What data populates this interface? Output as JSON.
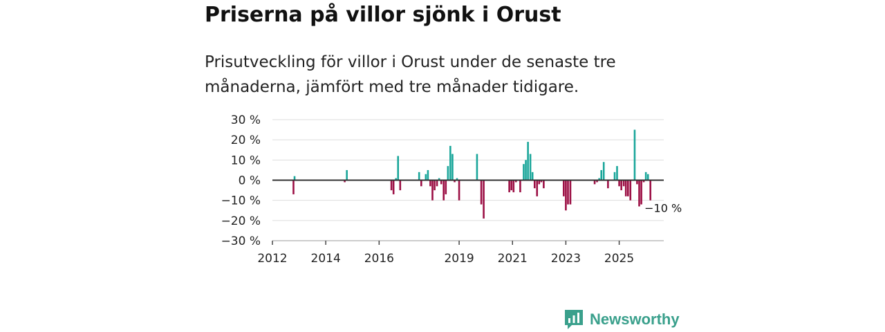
{
  "title": "Priserna på villor sjönk i Orust",
  "subtitle": "Prisutveckling för villor i Orust under de senaste tre månaderna, jämfört med tre månader tidigare.",
  "brand": {
    "name": "Newsworthy"
  },
  "colors": {
    "positive": "#1aa69a",
    "negative": "#9c1045",
    "zero_line": "#333333",
    "grid": "#dddddd",
    "brand": "#3aa08c"
  },
  "chart_data": {
    "type": "bar",
    "title": "Priserna på villor sjönk i Orust",
    "xlabel": "",
    "ylabel": "",
    "ylim": [
      -30,
      30
    ],
    "y_ticks": [
      30,
      20,
      10,
      0,
      -10,
      -20,
      -30
    ],
    "y_tick_labels": [
      "30 %",
      "20 %",
      "10 %",
      "0 %",
      "−10 %",
      "−20 %",
      "−30 %"
    ],
    "x_ticks": [
      2012,
      2014,
      2016,
      2019,
      2021,
      2023,
      2025
    ],
    "x_tick_labels": [
      "2012",
      "2014",
      "2016",
      "2019",
      "2021",
      "2023",
      "2025"
    ],
    "x_range": [
      2012.0,
      2026.67
    ],
    "annotation": {
      "text": "−10 %",
      "x": 2026.0,
      "y": -10
    },
    "series": [
      {
        "name": "Prisutveckling",
        "points": [
          {
            "x": 2012.79,
            "y": -7
          },
          {
            "x": 2012.83,
            "y": 2
          },
          {
            "x": 2014.71,
            "y": -1
          },
          {
            "x": 2014.79,
            "y": 5
          },
          {
            "x": 2016.46,
            "y": -5
          },
          {
            "x": 2016.54,
            "y": -7
          },
          {
            "x": 2016.63,
            "y": 1
          },
          {
            "x": 2016.71,
            "y": 12
          },
          {
            "x": 2016.79,
            "y": -5
          },
          {
            "x": 2017.5,
            "y": 4
          },
          {
            "x": 2017.58,
            "y": -3
          },
          {
            "x": 2017.75,
            "y": 3
          },
          {
            "x": 2017.83,
            "y": 5
          },
          {
            "x": 2017.92,
            "y": -3
          },
          {
            "x": 2018.0,
            "y": -10
          },
          {
            "x": 2018.08,
            "y": -5
          },
          {
            "x": 2018.17,
            "y": -3
          },
          {
            "x": 2018.25,
            "y": 1
          },
          {
            "x": 2018.33,
            "y": -2
          },
          {
            "x": 2018.42,
            "y": -10
          },
          {
            "x": 2018.5,
            "y": -7
          },
          {
            "x": 2018.58,
            "y": 7
          },
          {
            "x": 2018.67,
            "y": 17
          },
          {
            "x": 2018.75,
            "y": 13
          },
          {
            "x": 2018.83,
            "y": -1
          },
          {
            "x": 2018.92,
            "y": 1
          },
          {
            "x": 2019.0,
            "y": -10
          },
          {
            "x": 2019.67,
            "y": 13
          },
          {
            "x": 2019.83,
            "y": -12
          },
          {
            "x": 2019.92,
            "y": -19
          },
          {
            "x": 2020.88,
            "y": -6
          },
          {
            "x": 2020.96,
            "y": -5
          },
          {
            "x": 2021.04,
            "y": -6
          },
          {
            "x": 2021.13,
            "y": -1
          },
          {
            "x": 2021.29,
            "y": -6
          },
          {
            "x": 2021.42,
            "y": 8
          },
          {
            "x": 2021.5,
            "y": 10
          },
          {
            "x": 2021.58,
            "y": 19
          },
          {
            "x": 2021.67,
            "y": 13
          },
          {
            "x": 2021.75,
            "y": 4
          },
          {
            "x": 2021.83,
            "y": -4
          },
          {
            "x": 2021.92,
            "y": -8
          },
          {
            "x": 2022.0,
            "y": -2
          },
          {
            "x": 2022.08,
            "y": -1
          },
          {
            "x": 2022.17,
            "y": -4
          },
          {
            "x": 2022.92,
            "y": -8
          },
          {
            "x": 2023.0,
            "y": -15
          },
          {
            "x": 2023.08,
            "y": -12
          },
          {
            "x": 2023.17,
            "y": -12
          },
          {
            "x": 2024.08,
            "y": -2
          },
          {
            "x": 2024.17,
            "y": -1
          },
          {
            "x": 2024.25,
            "y": 1
          },
          {
            "x": 2024.33,
            "y": 5
          },
          {
            "x": 2024.42,
            "y": 9
          },
          {
            "x": 2024.58,
            "y": -4
          },
          {
            "x": 2024.83,
            "y": 4
          },
          {
            "x": 2024.92,
            "y": 7
          },
          {
            "x": 2025.0,
            "y": -3
          },
          {
            "x": 2025.08,
            "y": -5
          },
          {
            "x": 2025.17,
            "y": -3
          },
          {
            "x": 2025.25,
            "y": -8
          },
          {
            "x": 2025.33,
            "y": -8
          },
          {
            "x": 2025.42,
            "y": -10
          },
          {
            "x": 2025.58,
            "y": 25
          },
          {
            "x": 2025.67,
            "y": -2
          },
          {
            "x": 2025.75,
            "y": -13
          },
          {
            "x": 2025.83,
            "y": -12
          },
          {
            "x": 2025.92,
            "y": -1
          },
          {
            "x": 2026.0,
            "y": 4
          },
          {
            "x": 2026.08,
            "y": 3
          },
          {
            "x": 2026.17,
            "y": -10
          }
        ]
      }
    ]
  }
}
